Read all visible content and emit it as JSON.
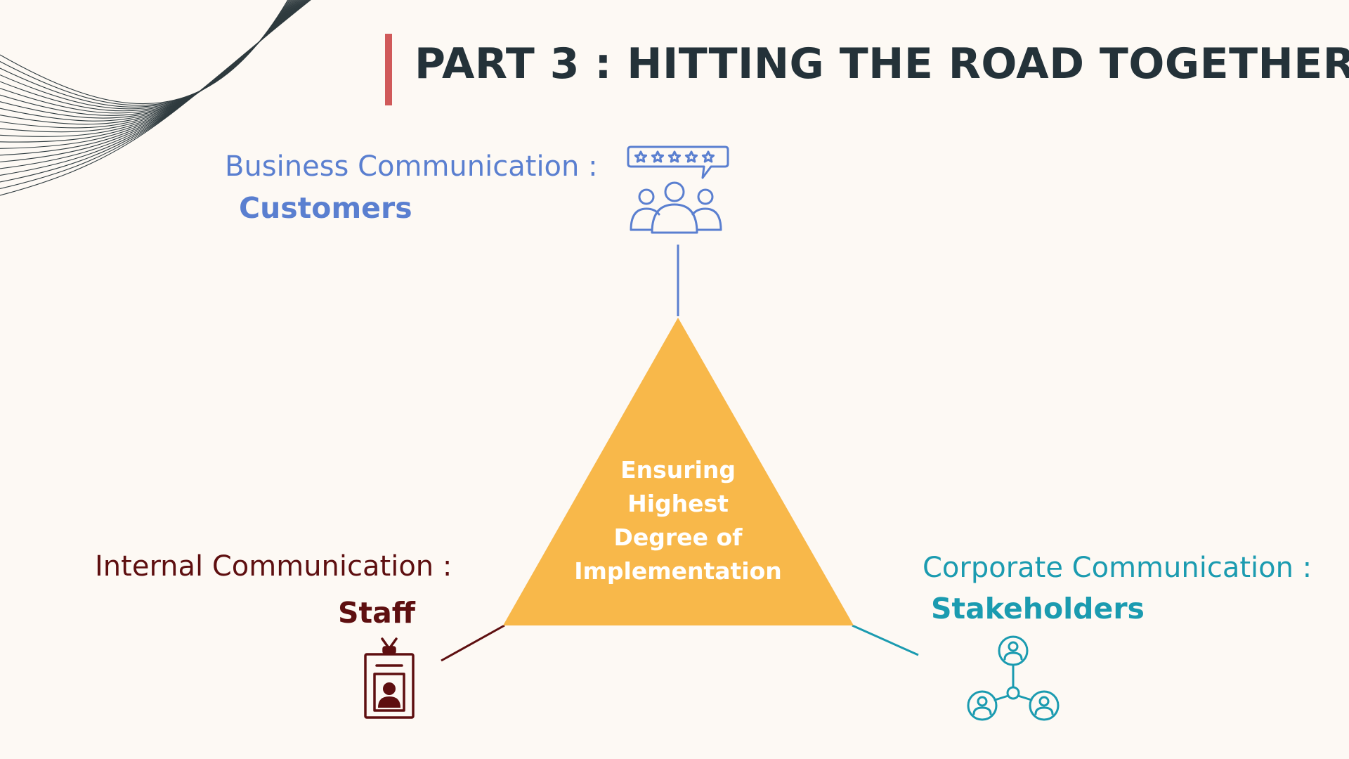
{
  "title": "PART 3 : HITTING THE ROAD TOGETHER",
  "colors": {
    "background": "#fdf9f4",
    "title": "#243239",
    "title_accent": "#d05a5a",
    "triangle": "#f8b84a",
    "customers": "#5a7fd0",
    "staff": "#5e0f10",
    "stakeholders": "#1b9bb0",
    "deco_lines": "#2f3b3f"
  },
  "diagram": {
    "center_lines": [
      "Ensuring",
      "Highest",
      "Degree of",
      "Implementation"
    ],
    "nodes": {
      "customers": {
        "type_label": "Business Communication :",
        "name_label": "Customers",
        "icon": "customer-rating-group-icon"
      },
      "staff": {
        "type_label": "Internal Communication :",
        "name_label": "Staff",
        "icon": "staff-id-badge-icon"
      },
      "stakeholders": {
        "type_label": "Corporate Communication :",
        "name_label": "Stakeholders",
        "icon": "stakeholder-network-icon"
      }
    }
  }
}
